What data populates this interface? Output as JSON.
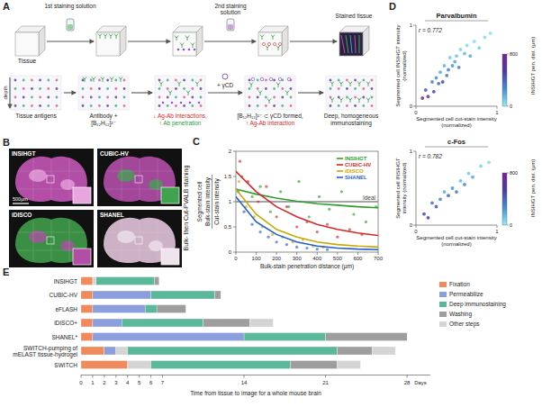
{
  "figure": {
    "A": {
      "letter": "A",
      "tissue": "Tissue",
      "first_stain": "1st staining solution",
      "second_stain": "2nd staining solution",
      "stained": "Stained tissue",
      "depth": "depth",
      "cd": "+ γCD",
      "steps": [
        {
          "lines": [
            {
              "text": "Tissue antigens",
              "color": "#222222"
            }
          ]
        },
        {
          "lines": [
            {
              "text": "Antibody +",
              "color": "#222222"
            },
            {
              "text": "[B₁₂H₁₂]²⁻",
              "color": "#222222"
            }
          ]
        },
        {
          "lines": [
            {
              "text": "↓ Ag-Ab interactions,",
              "color": "#d62728"
            },
            {
              "text": "↑ Ab penetration",
              "color": "#2a9d3c"
            }
          ]
        },
        {
          "lines": [
            {
              "text": "[B₁₂H₁₂]²⁻ ⊂ γCD formed,",
              "color": "#222222"
            },
            {
              "text": "↑ Ag-Ab interaction",
              "color": "#d62728"
            }
          ]
        },
        {
          "lines": [
            {
              "text": "Deep, homogeneous",
              "color": "#222222"
            },
            {
              "text": "immunostaining",
              "color": "#222222"
            }
          ]
        }
      ]
    },
    "B": {
      "letter": "B",
      "title": "Bulk- then Cut-PVALB staining",
      "scale_bar": "500µm",
      "images": [
        "INSIHGT",
        "CUBIC-HV",
        "iDISCO",
        "SHANEL"
      ]
    },
    "C": {
      "letter": "C"
    },
    "D": {
      "letter": "D"
    },
    "E": {
      "letter": "E"
    }
  },
  "chart_data": [
    {
      "type": "scatter",
      "x_label": "Bulk-stain penetration distance (µm)",
      "y_label": {
        "prefix": "Segmented cell",
        "numerator": "Bulk-stain intensity",
        "denominator": "Cut-stain intensity"
      },
      "xlim": [
        0,
        700
      ],
      "xticks": [
        0,
        100,
        200,
        300,
        400,
        500,
        600,
        700
      ],
      "ylim": [
        0,
        2
      ],
      "yticks": [
        0,
        0.5,
        1,
        1.5,
        2
      ],
      "legend": "upper right",
      "reference_line": {
        "label": "Ideal",
        "value": 1
      },
      "series": [
        {
          "name": "INSIHGT",
          "color": "#2ca02c",
          "x": [
            0,
            100,
            200,
            300,
            400,
            500,
            600,
            700
          ],
          "values": [
            1.25,
            1.15,
            1.07,
            1.01,
            0.96,
            0.93,
            0.9,
            0.88
          ],
          "scatter_x": [
            30,
            80,
            120,
            170,
            220,
            260,
            310,
            360,
            410,
            460,
            520,
            580,
            640,
            690
          ],
          "scatter_y": [
            1.5,
            1.1,
            1.3,
            0.8,
            1.2,
            0.9,
            1.4,
            0.7,
            1.1,
            0.85,
            1.2,
            0.75,
            0.6,
            0.9
          ]
        },
        {
          "name": "CUBIC-HV",
          "color": "#d62728",
          "x": [
            0,
            100,
            200,
            300,
            400,
            500,
            600,
            700
          ],
          "values": [
            1.6,
            1.2,
            0.9,
            0.7,
            0.55,
            0.45,
            0.38,
            0.33
          ],
          "scatter_x": [
            20,
            60,
            110,
            150,
            200,
            250,
            300,
            350,
            400,
            450,
            500,
            560,
            620
          ],
          "scatter_y": [
            1.8,
            1.4,
            1.0,
            1.3,
            0.7,
            0.9,
            0.5,
            0.6,
            0.4,
            0.55,
            0.3,
            0.45,
            0.35
          ]
        },
        {
          "name": "iDISCO",
          "color": "#c9a800",
          "x": [
            0,
            100,
            200,
            300,
            400,
            500,
            600,
            700
          ],
          "values": [
            1.25,
            0.75,
            0.45,
            0.3,
            0.2,
            0.15,
            0.12,
            0.1
          ],
          "scatter_x": [
            15,
            50,
            90,
            130,
            180,
            230,
            280,
            330,
            380,
            430
          ],
          "scatter_y": [
            1.4,
            0.9,
            0.7,
            0.5,
            0.35,
            0.3,
            0.2,
            0.25,
            0.12,
            0.1
          ]
        },
        {
          "name": "SHANEL",
          "color": "#1f5fd0",
          "x": [
            0,
            100,
            200,
            300,
            400,
            500,
            600,
            700
          ],
          "values": [
            1.1,
            0.6,
            0.35,
            0.2,
            0.12,
            0.08,
            0.06,
            0.05
          ],
          "scatter_x": [
            10,
            40,
            80,
            120,
            160,
            200,
            250,
            300,
            350,
            400,
            450
          ],
          "scatter_y": [
            1.2,
            0.8,
            0.55,
            0.4,
            0.3,
            0.2,
            0.15,
            0.1,
            0.08,
            0.06,
            0.05
          ]
        }
      ]
    },
    {
      "type": "scatter",
      "title": "Parvalbumin",
      "annotation": "r = 0.772",
      "x_label": "Segmented cell cut-stain intensity (normalized)",
      "y_label": "Segmented cell INSIHGT intensity (normalized)",
      "xlim": [
        0,
        1
      ],
      "xticks": [
        0,
        1
      ],
      "ylim": [
        0,
        1
      ],
      "yticks": [
        0,
        1
      ],
      "x": [
        0.08,
        0.12,
        0.15,
        0.2,
        0.22,
        0.25,
        0.28,
        0.3,
        0.33,
        0.35,
        0.38,
        0.4,
        0.42,
        0.45,
        0.48,
        0.5,
        0.53,
        0.55,
        0.6,
        0.63,
        0.67,
        0.72,
        0.78,
        0.85,
        0.92
      ],
      "values": [
        0.1,
        0.2,
        0.12,
        0.3,
        0.18,
        0.35,
        0.28,
        0.42,
        0.3,
        0.5,
        0.38,
        0.45,
        0.6,
        0.5,
        0.55,
        0.62,
        0.48,
        0.7,
        0.65,
        0.75,
        0.62,
        0.8,
        0.72,
        0.85,
        0.9
      ],
      "pen_dist": [
        600,
        450,
        700,
        300,
        550,
        250,
        400,
        200,
        500,
        150,
        350,
        300,
        100,
        250,
        200,
        120,
        300,
        80,
        150,
        60,
        200,
        50,
        100,
        40,
        30
      ],
      "colorbar": {
        "label": "INSIHGT pen. dist. (µm)",
        "range": [
          0,
          800
        ],
        "ticks": [
          0,
          800
        ]
      }
    },
    {
      "type": "scatter",
      "title": "c-Fos",
      "annotation": "r = 0.782",
      "x_label": "Segmented cell cut-stain intensity (normalized)",
      "y_label": "Segmented cell INSIHGT intensity (normalized)",
      "xlim": [
        0,
        1
      ],
      "xticks": [
        0,
        1
      ],
      "ylim": [
        0,
        1
      ],
      "yticks": [
        0,
        1
      ],
      "x": [
        0.1,
        0.15,
        0.2,
        0.25,
        0.3,
        0.35,
        0.4,
        0.45,
        0.5,
        0.55,
        0.6,
        0.65,
        0.7,
        0.8,
        0.9
      ],
      "values": [
        0.15,
        0.1,
        0.3,
        0.25,
        0.35,
        0.45,
        0.4,
        0.5,
        0.45,
        0.6,
        0.55,
        0.7,
        0.65,
        0.8,
        0.85
      ],
      "pen_dist": [
        500,
        650,
        350,
        450,
        300,
        200,
        400,
        250,
        350,
        150,
        300,
        100,
        200,
        80,
        50
      ],
      "colorbar": {
        "label": "INSIHGT pen. dist. (µm)",
        "range": [
          0,
          800
        ],
        "ticks": [
          0,
          800
        ]
      }
    },
    {
      "type": "bar",
      "orientation": "horizontal",
      "stacked": true,
      "x_label": "Time from tissue to image for a whole mouse brain",
      "x_unit": "Days",
      "xlim": [
        0,
        30
      ],
      "xticks": [
        0,
        1,
        2,
        3,
        4,
        5,
        6,
        7,
        14,
        21,
        28
      ],
      "legend": "right",
      "steps": [
        {
          "name": "Fixation",
          "color": "#ef8a5c"
        },
        {
          "name": "Permeabilize",
          "color": "#8a9fdc"
        },
        {
          "name": "Deep immunostaining",
          "color": "#5cb89a"
        },
        {
          "name": "Washing",
          "color": "#9e9e9e"
        },
        {
          "name": "Other steps",
          "color": "#d4d4d4"
        }
      ],
      "rows": [
        {
          "label": "INSIHGT",
          "segments": [
            {
              "step": "Fixation",
              "days": 1
            },
            {
              "step": "Other steps",
              "days": 0.3
            },
            {
              "step": "Deep immunostaining",
              "days": 5
            },
            {
              "step": "Washing",
              "days": 0.4
            }
          ]
        },
        {
          "label": "CUBIC-HV",
          "segments": [
            {
              "step": "Fixation",
              "days": 1
            },
            {
              "step": "Permeabilize",
              "days": 5
            },
            {
              "step": "Deep immunostaining",
              "days": 5.5
            },
            {
              "step": "Washing",
              "days": 0.5
            }
          ]
        },
        {
          "label": "eFLASH",
          "segments": [
            {
              "step": "Fixation",
              "days": 1
            },
            {
              "step": "Permeabilize",
              "days": 4.5
            },
            {
              "step": "Deep immunostaining",
              "days": 1
            },
            {
              "step": "Washing",
              "days": 2.5
            }
          ]
        },
        {
          "label": "iDISCO+",
          "segments": [
            {
              "step": "Fixation",
              "days": 1
            },
            {
              "step": "Permeabilize",
              "days": 2.5
            },
            {
              "step": "Deep immunostaining",
              "days": 7
            },
            {
              "step": "Washing",
              "days": 4
            },
            {
              "step": "Other steps",
              "days": 2
            }
          ]
        },
        {
          "label": "SHANEL*",
          "segments": [
            {
              "step": "Fixation",
              "days": 1
            },
            {
              "step": "Permeabilize",
              "days": 13
            },
            {
              "step": "Deep immunostaining",
              "days": 7
            },
            {
              "step": "Washing",
              "days": 7
            }
          ]
        },
        {
          "label": "SWITCH-pumping of mELAST tissue-hydrogel",
          "segments": [
            {
              "step": "Fixation",
              "days": 2
            },
            {
              "step": "Permeabilize",
              "days": 1
            },
            {
              "step": "Other steps",
              "days": 1
            },
            {
              "step": "Deep immunostaining",
              "days": 18
            },
            {
              "step": "Washing",
              "days": 3
            },
            {
              "step": "Other steps",
              "days": 2
            }
          ]
        },
        {
          "label": "SWITCH",
          "segments": [
            {
              "step": "Fixation",
              "days": 4
            },
            {
              "step": "Other steps",
              "days": 2
            },
            {
              "step": "Deep immunostaining",
              "days": 12
            },
            {
              "step": "Washing",
              "days": 4
            },
            {
              "step": "Other steps",
              "days": 2
            }
          ]
        }
      ]
    }
  ]
}
